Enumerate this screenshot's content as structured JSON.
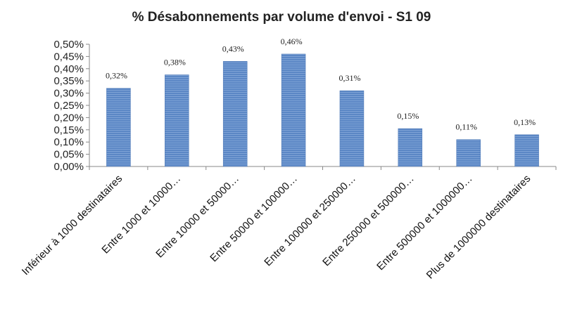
{
  "chart_data": {
    "type": "bar",
    "title": "% Désabonnements par volume d'envoi - S1 09",
    "xlabel": "",
    "ylabel": "",
    "categories": [
      "Inférieur à 1000 destinataires",
      "Entre 1000 et 10000…",
      "Entre 10000 et 50000…",
      "Entre 50000 et 100000…",
      "Entre 100000 et 250000…",
      "Entre 250000 et 500000…",
      "Entre 500000 et 1000000…",
      "Plus de 1000000 destinataires"
    ],
    "values": [
      0.32,
      0.375,
      0.43,
      0.46,
      0.31,
      0.155,
      0.11,
      0.13
    ],
    "data_labels": [
      "0,32%",
      "0,38%",
      "0,43%",
      "0,46%",
      "0,31%",
      "0,15%",
      "0,11%",
      "0,13%"
    ],
    "ylim": [
      0,
      0.5
    ],
    "yticks": [
      0,
      0.05,
      0.1,
      0.15,
      0.2,
      0.25,
      0.3,
      0.35,
      0.4,
      0.45,
      0.5
    ],
    "ytick_labels": [
      "0,00%",
      "0,05%",
      "0,10%",
      "0,15%",
      "0,20%",
      "0,25%",
      "0,30%",
      "0,35%",
      "0,40%",
      "0,45%",
      "0,50%"
    ],
    "grid": false,
    "legend": "none",
    "colors": {
      "bar": "#5b87c5",
      "bar_stripe": "#7fa3d6",
      "axis": "#888888"
    }
  }
}
